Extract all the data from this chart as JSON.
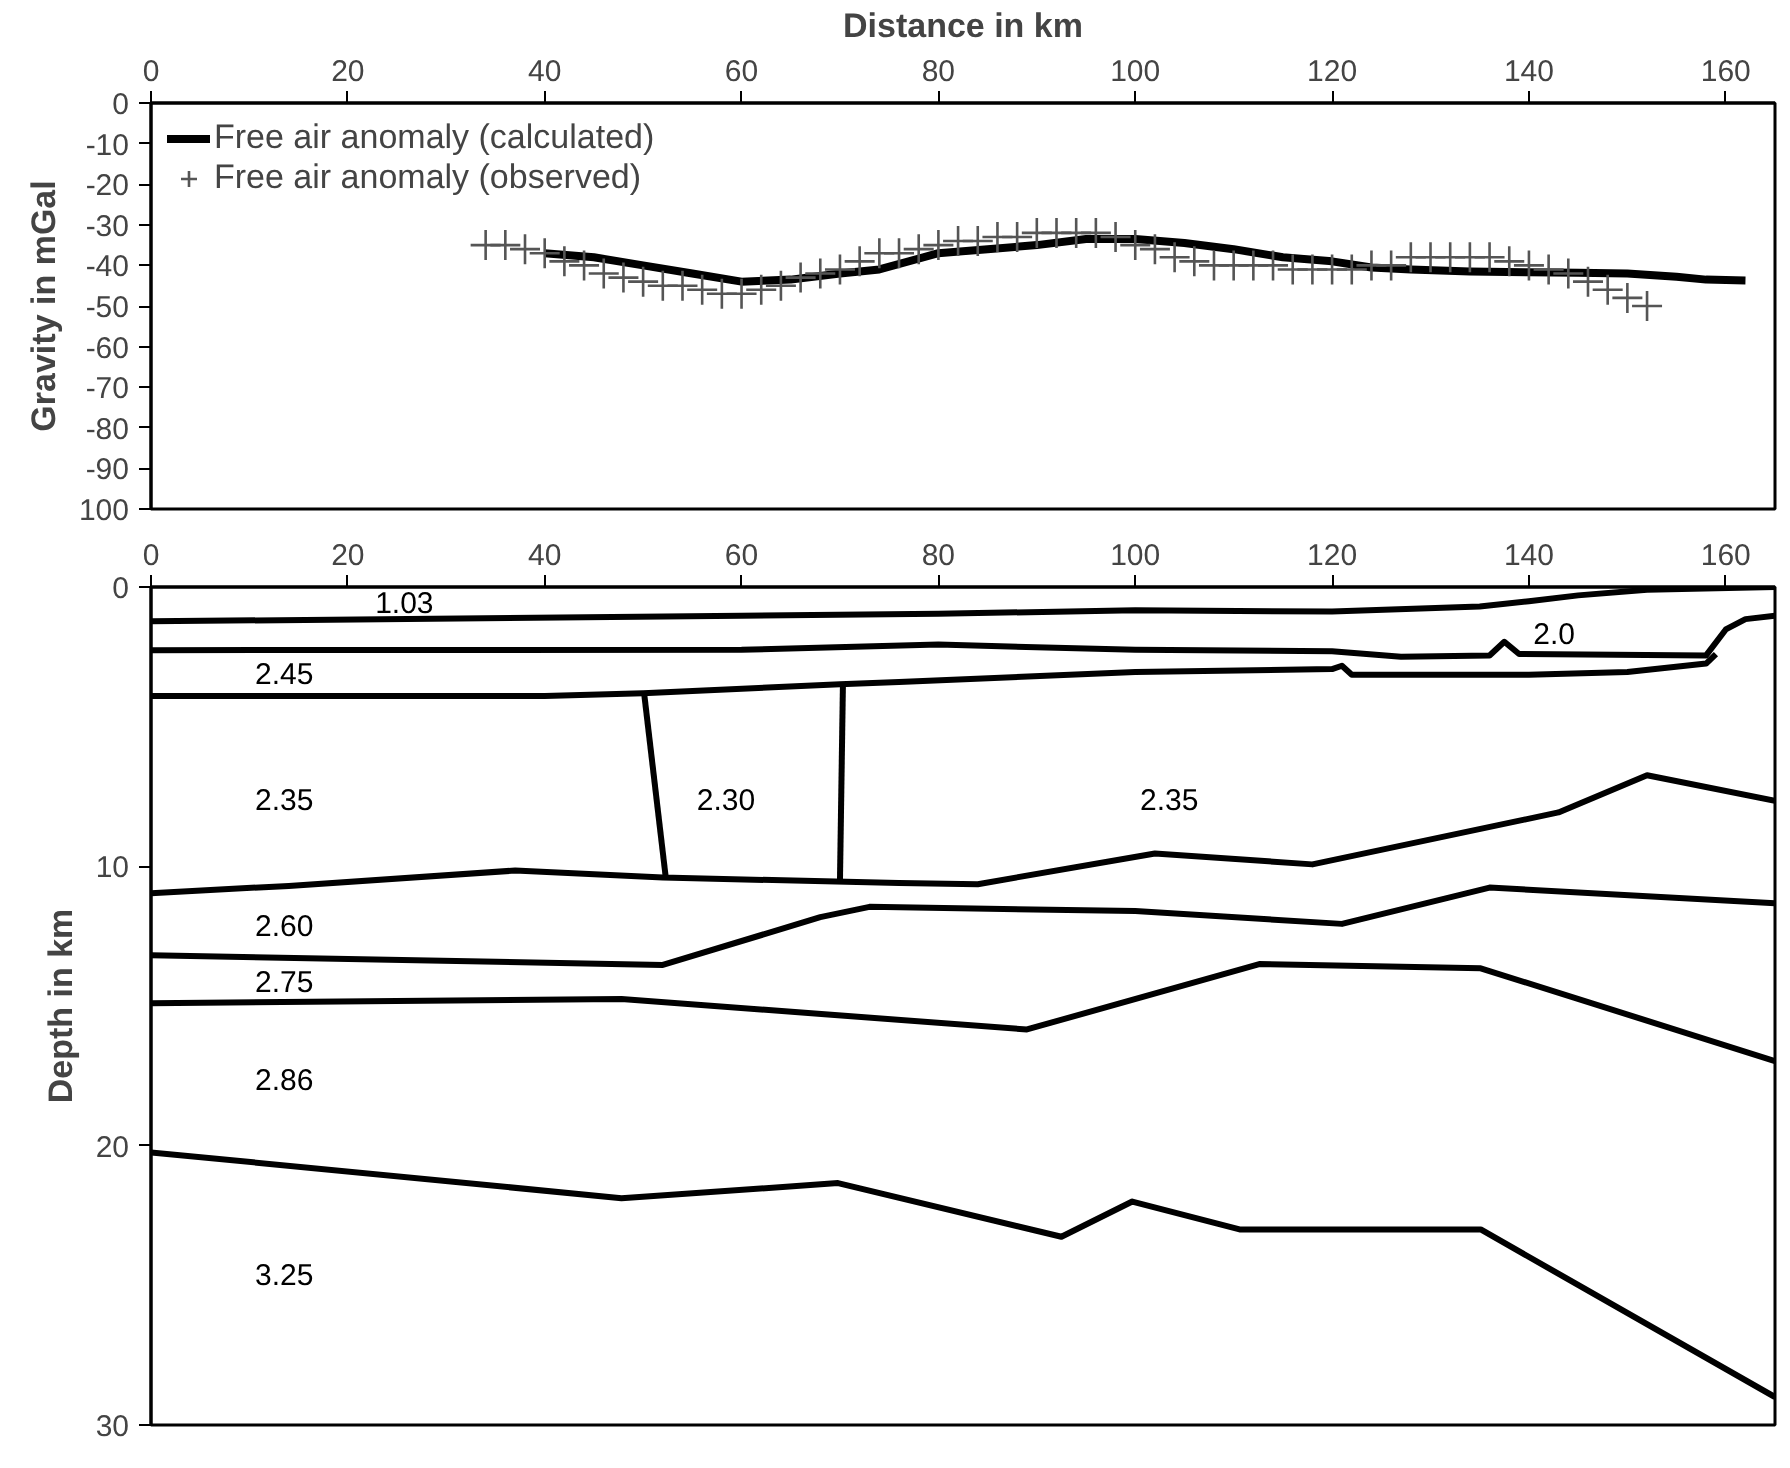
{
  "chart_data": [
    {
      "type": "line",
      "xlabel": "Distance in km",
      "ylabel": "Gravity in mGal",
      "xlim": [
        0,
        165
      ],
      "xticks": [
        0,
        20,
        40,
        60,
        80,
        100,
        120,
        140,
        160
      ],
      "ylim": [
        -100,
        0
      ],
      "yticks": [
        0,
        -10,
        -20,
        -30,
        -40,
        -50,
        -60,
        -70,
        -80,
        -90,
        {
          "value": -100,
          "label": "100"
        }
      ],
      "grid": false,
      "legend": "top left",
      "series": [
        {
          "name": "Free air anomaly (calculated)",
          "type": "line",
          "color": "#000000",
          "x": [
            40,
            45,
            50,
            55,
            60,
            65,
            70,
            74,
            80,
            85,
            90,
            95,
            100,
            105,
            110,
            115,
            120,
            124,
            128,
            134,
            140,
            145,
            150,
            155,
            158,
            162
          ],
          "values": [
            -37,
            -38,
            -40,
            -42,
            -44,
            -43.5,
            -42,
            -41,
            -37,
            -36,
            -35,
            -33.5,
            -33.5,
            -34.5,
            -36,
            -38,
            -39,
            -40.5,
            -41,
            -41.5,
            -41.7,
            -41.8,
            -42,
            -42.8,
            -43.5,
            -43.7
          ]
        },
        {
          "name": "Free air anomaly (observed)",
          "type": "scatter",
          "marker": "cross",
          "color": "#555555",
          "x": [
            34,
            36,
            38,
            40,
            42,
            44,
            46,
            48,
            50,
            52,
            54,
            56,
            58,
            60,
            62,
            64,
            66,
            68,
            70,
            72,
            74,
            76,
            78,
            80,
            82,
            84,
            86,
            88,
            90,
            92,
            94,
            96,
            98,
            100,
            102,
            104,
            106,
            108,
            110,
            112,
            114,
            116,
            118,
            120,
            122,
            124,
            126,
            128,
            130,
            132,
            134,
            136,
            138,
            140,
            142,
            144,
            146,
            148,
            150,
            152
          ],
          "values": [
            -35,
            -35,
            -36,
            -37,
            -39,
            -40,
            -42,
            -43,
            -44,
            -45,
            -45,
            -46,
            -47,
            -47,
            -46,
            -45,
            -43,
            -42,
            -41,
            -39,
            -37,
            -37,
            -36,
            -35,
            -34,
            -34,
            -33,
            -33,
            -32,
            -32,
            -32,
            -32,
            -33,
            -35,
            -36,
            -38,
            -39,
            -40,
            -40,
            -40,
            -40,
            -41,
            -41,
            -41,
            -41,
            -40,
            -40,
            -38,
            -38,
            -38,
            -38,
            -38,
            -39,
            -40,
            -41,
            -42,
            -44,
            -46,
            -48,
            -50
          ]
        }
      ]
    },
    {
      "type": "line",
      "ylabel": "Depth in km",
      "xlim": [
        0,
        165
      ],
      "xticks": [
        0,
        20,
        40,
        60,
        80,
        100,
        120,
        140,
        160
      ],
      "ylim": [
        30,
        0
      ],
      "yticks": [
        0,
        10,
        20,
        30
      ],
      "grid": false,
      "series": [
        {
          "color": "#000000",
          "x": [
            0,
            60,
            80,
            100,
            120,
            135,
            140,
            145,
            152,
            165
          ],
          "values": [
            1.23,
            1.03,
            0.96,
            0.83,
            0.88,
            0.7,
            0.51,
            0.3,
            0.1,
            0.0
          ]
        },
        {
          "color": "#000000",
          "x": [
            0,
            60,
            80,
            100,
            120,
            127,
            136,
            137.5,
            139,
            158,
            160,
            162,
            165
          ],
          "values": [
            2.26,
            2.25,
            2.06,
            2.25,
            2.3,
            2.5,
            2.45,
            1.96,
            2.4,
            2.45,
            1.52,
            1.15,
            1.03
          ]
        },
        {
          "color": "#000000",
          "x": [
            0,
            40,
            50,
            70,
            76,
            100,
            120,
            121,
            122,
            140,
            150,
            158,
            159
          ],
          "values": [
            3.9,
            3.9,
            3.8,
            3.48,
            3.4,
            3.04,
            2.94,
            2.82,
            3.14,
            3.14,
            3.04,
            2.74,
            2.4
          ]
        },
        {
          "color": "#000000",
          "x": [
            50.1,
            52.3
          ],
          "values": [
            3.8,
            10.4
          ]
        },
        {
          "color": "#000000",
          "x": [
            70.3,
            70.0
          ],
          "values": [
            3.48,
            10.5
          ]
        },
        {
          "color": "#000000",
          "x": [
            0,
            14,
            37,
            52,
            76,
            84,
            102,
            118,
            143,
            152,
            165
          ],
          "values": [
            10.96,
            10.7,
            10.15,
            10.4,
            10.6,
            10.64,
            9.54,
            9.93,
            8.07,
            6.74,
            7.65
          ]
        },
        {
          "color": "#000000",
          "x": [
            0,
            52,
            68,
            73,
            100,
            121,
            136,
            165
          ],
          "values": [
            13.18,
            13.53,
            11.82,
            11.45,
            11.6,
            12.06,
            10.76,
            11.32
          ]
        },
        {
          "color": "#000000",
          "x": [
            0,
            47.8,
            89,
            112.6,
            135.1,
            165
          ],
          "values": [
            14.9,
            14.75,
            15.84,
            13.5,
            13.65,
            16.97
          ]
        },
        {
          "color": "#000000",
          "x": [
            0,
            47.8,
            69.8,
            92.5,
            99.7,
            110.6,
            135.1,
            165
          ],
          "values": [
            20.24,
            21.88,
            21.34,
            23.26,
            22.0,
            23.0,
            23.0,
            29.0
          ]
        }
      ],
      "annotations": [
        "1.03",
        "2.45",
        "2.35",
        "2.30",
        "2.35",
        "2.0",
        "2.60",
        "2.75",
        "2.86",
        "3.25"
      ]
    }
  ]
}
